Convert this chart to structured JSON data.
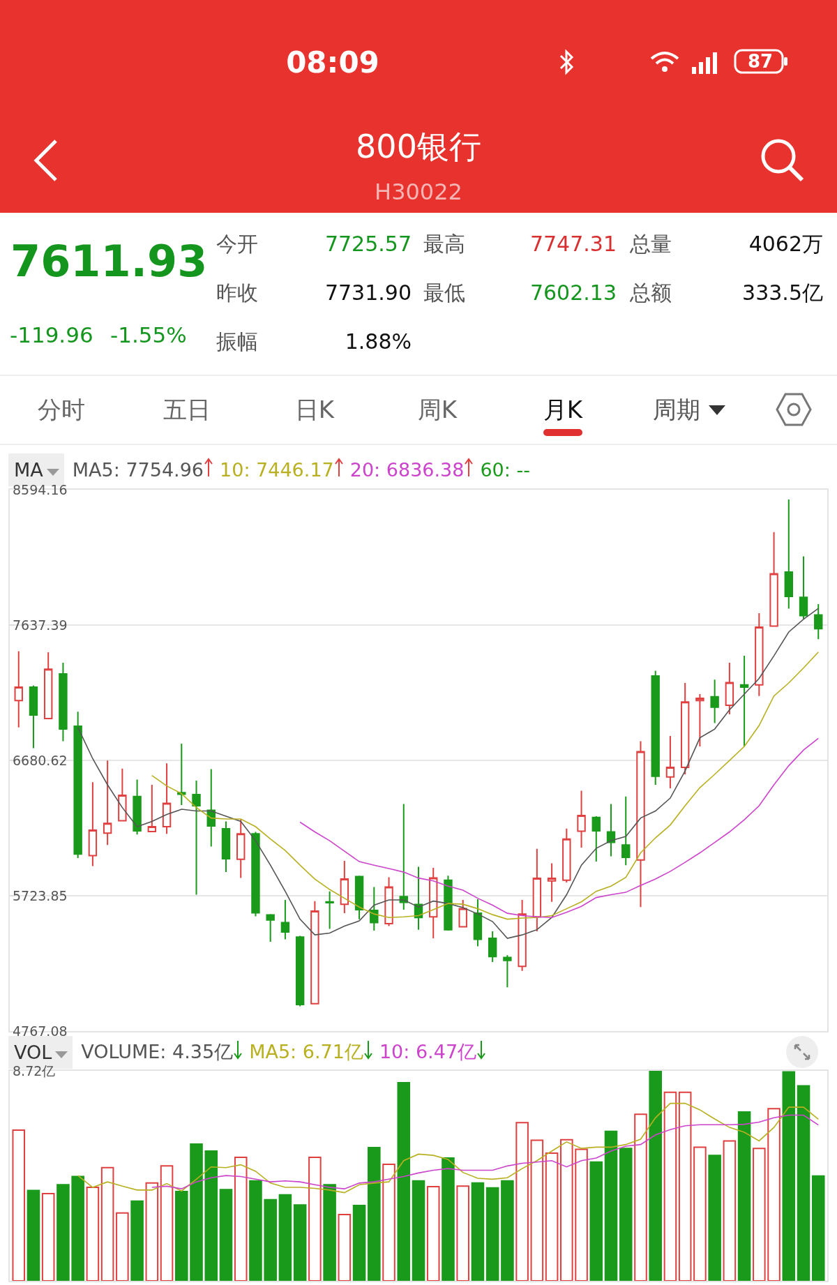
{
  "chart_data": [
    {
      "type": "other",
      "title": "800银行",
      "subtitle": "H30022",
      "annotations": [
        "08:09",
        "87",
        "7611.93",
        "-119.96",
        "-1.55%",
        "今开",
        "7725.57",
        "最高",
        "7747.31",
        "总量",
        "4062万",
        "昨收",
        "7731.90",
        "最低",
        "7602.13",
        "总额",
        "333.5亿",
        "振幅",
        "1.88%",
        "分时",
        "五日",
        "日K",
        "周K",
        "月K",
        "周期"
      ]
    },
    {
      "type": "candlestick",
      "tick_labels": "y",
      "grid": "y",
      "categories": [
        null,
        null,
        null,
        null,
        null,
        null,
        null,
        null,
        null,
        null,
        null,
        null,
        null,
        null,
        null,
        null,
        null,
        null,
        null,
        null,
        null,
        null,
        null,
        null,
        null,
        null,
        null,
        null,
        null,
        null,
        null,
        null,
        null,
        null,
        null,
        null,
        null,
        null,
        null,
        null,
        null,
        null,
        null,
        null,
        null,
        null,
        null,
        null,
        null,
        null,
        null,
        null,
        null,
        null,
        null
      ],
      "ylim": [
        4767.08,
        8594.16
      ],
      "yticks": [
        4767.08,
        5723.85,
        6680.62,
        7637.39,
        8594.16
      ],
      "annotations": [
        "MA",
        "MA5: 7754.96",
        "10: 7446.17",
        "20: 6836.38",
        "60: --"
      ],
      "ohlc": [
        [
          7104,
          7452,
          6914,
          7198
        ],
        [
          7198,
          7210,
          6767,
          7001
        ],
        [
          6976,
          7445,
          6976,
          7326
        ],
        [
          7292,
          7371,
          6816,
          6902
        ],
        [
          6922,
          7025,
          5990,
          6019
        ],
        [
          6007,
          6527,
          5933,
          6187
        ],
        [
          6167,
          6680,
          6083,
          6236
        ],
        [
          6254,
          6623,
          6249,
          6434
        ],
        [
          6426,
          6545,
          6157,
          6182
        ],
        [
          6177,
          6508,
          6175,
          6212
        ],
        [
          6212,
          6660,
          6162,
          6377
        ],
        [
          6453,
          6799,
          6365,
          6441
        ],
        [
          6439,
          6537,
          5731,
          6360
        ],
        [
          6328,
          6619,
          6071,
          6217
        ],
        [
          6197,
          6249,
          5891,
          5985
        ],
        [
          5982,
          6261,
          5849,
          6162
        ],
        [
          6162,
          6175,
          5578,
          5603
        ],
        [
          5588,
          5595,
          5398,
          5553
        ],
        [
          5534,
          5694,
          5415,
          5467
        ],
        [
          5432,
          5440,
          4942,
          4954
        ],
        [
          4961,
          5686,
          4959,
          5615
        ],
        [
          5681,
          5755,
          5489,
          5674
        ],
        [
          5664,
          5970,
          5600,
          5842
        ],
        [
          5859,
          5866,
          5558,
          5625
        ],
        [
          5620,
          5785,
          5477,
          5534
        ],
        [
          5526,
          5854,
          5509,
          5785
        ],
        [
          5718,
          6372,
          5625,
          5677
        ],
        [
          5662,
          5928,
          5484,
          5570
        ],
        [
          5575,
          5921,
          5423,
          5849
        ],
        [
          5834,
          5866,
          5477,
          5484
        ],
        [
          5504,
          5694,
          5501,
          5632
        ],
        [
          5600,
          5699,
          5366,
          5415
        ],
        [
          5423,
          5472,
          5255,
          5294
        ],
        [
          5287,
          5304,
          5077,
          5267
        ],
        [
          5225,
          5694,
          5193,
          5595
        ],
        [
          5575,
          6056,
          5472,
          5847
        ],
        [
          5829,
          5953,
          5681,
          5847
        ],
        [
          5834,
          6199,
          5817,
          6125
        ],
        [
          6180,
          6466,
          6064,
          6291
        ],
        [
          6278,
          6286,
          5965,
          6182
        ],
        [
          6175,
          6372,
          6002,
          6101
        ],
        [
          6083,
          6426,
          5940,
          5995
        ],
        [
          5977,
          6816,
          5644,
          6742
        ],
        [
          7277,
          7314,
          6508,
          6569
        ],
        [
          6564,
          6853,
          6483,
          6631
        ],
        [
          6631,
          7228,
          6582,
          7094
        ],
        [
          7104,
          7149,
          6779,
          7119
        ],
        [
          7131,
          7252,
          6944,
          7057
        ],
        [
          7070,
          7371,
          7006,
          7230
        ],
        [
          7215,
          7420,
          6779,
          7198
        ],
        [
          7215,
          7721,
          7136,
          7622
        ],
        [
          7630,
          8295,
          7630,
          8000
        ],
        [
          8012,
          8525,
          7753,
          7839
        ],
        [
          7834,
          8123,
          7679,
          7704
        ],
        [
          7709,
          7785,
          7538,
          7612
        ]
      ],
      "series": [
        {
          "type": "line",
          "color": "#555555",
          "values": [
            null,
            null,
            null,
            null,
            6914,
            6693,
            6508,
            6347,
            6212,
            6249,
            6298,
            6335,
            6323,
            6323,
            6286,
            6249,
            6113,
            5940,
            5755,
            5558,
            5447,
            5460,
            5509,
            5546,
            5657,
            5694,
            5694,
            5644,
            5686,
            5669,
            5640,
            5595,
            5541,
            5423,
            5447,
            5484,
            5570,
            5731,
            5940,
            6059,
            6113,
            6143,
            6273,
            6323,
            6414,
            6606,
            6840,
            6902,
            7038,
            7149,
            7260,
            7420,
            7588,
            7679,
            7755
          ]
        },
        {
          "type": "line",
          "color": "#b8b020",
          "values": [
            null,
            null,
            null,
            null,
            null,
            null,
            null,
            null,
            null,
            6574,
            6500,
            6446,
            6347,
            6273,
            6266,
            6266,
            6212,
            6125,
            6044,
            5940,
            5842,
            5768,
            5706,
            5644,
            5595,
            5570,
            5575,
            5583,
            5625,
            5669,
            5664,
            5632,
            5590,
            5558,
            5566,
            5570,
            5583,
            5632,
            5681,
            5755,
            5792,
            5854,
            6027,
            6133,
            6224,
            6360,
            6488,
            6582,
            6680,
            6779,
            6927,
            7136,
            7228,
            7334,
            7446
          ]
        },
        {
          "type": "line",
          "color": "#cc44cc",
          "values": [
            null,
            null,
            null,
            null,
            null,
            null,
            null,
            null,
            null,
            null,
            null,
            null,
            null,
            null,
            null,
            null,
            null,
            null,
            null,
            6244,
            6175,
            6113,
            6039,
            5965,
            5940,
            5916,
            5891,
            5849,
            5829,
            5792,
            5763,
            5706,
            5657,
            5600,
            5583,
            5575,
            5570,
            5607,
            5649,
            5711,
            5731,
            5748,
            5797,
            5842,
            5896,
            5960,
            6027,
            6101,
            6175,
            6261,
            6360,
            6508,
            6643,
            6754,
            6836
          ]
        }
      ]
    },
    {
      "type": "bar",
      "tick_labels": "y",
      "categories": [
        null,
        null,
        null,
        null,
        null,
        null,
        null,
        null,
        null,
        null,
        null,
        null,
        null,
        null,
        null,
        null,
        null,
        null,
        null,
        null,
        null,
        null,
        null,
        null,
        null,
        null,
        null,
        null,
        null,
        null,
        null,
        null,
        null,
        null,
        null,
        null,
        null,
        null,
        null,
        null,
        null,
        null,
        null,
        null,
        null,
        null,
        null,
        null,
        null,
        null,
        null,
        null,
        null,
        null,
        null
      ],
      "ylim": [
        0,
        8.72
      ],
      "yticks": [
        {
          "value": 0,
          "label": null
        },
        {
          "value": 8.72,
          "label": "8.72亿"
        }
      ],
      "annotations": [
        "VOL",
        "VOLUME: 4.35亿",
        "MA5: 6.71亿",
        "10: 6.47亿"
      ],
      "series": [
        {
          "type": "bar",
          "colors": [
            "#e04040",
            "#1a9a1a",
            "#e04040",
            "#1a9a1a",
            "#1a9a1a",
            "#e04040",
            "#e04040",
            "#e04040",
            "#1a9a1a",
            "#e04040",
            "#e04040",
            "#1a9a1a",
            "#1a9a1a",
            "#1a9a1a",
            "#1a9a1a",
            "#e04040",
            "#1a9a1a",
            "#1a9a1a",
            "#1a9a1a",
            "#1a9a1a",
            "#e04040",
            "#1a9a1a",
            "#e04040",
            "#1a9a1a",
            "#1a9a1a",
            "#e04040",
            "#1a9a1a",
            "#1a9a1a",
            "#e04040",
            "#1a9a1a",
            "#e04040",
            "#1a9a1a",
            "#1a9a1a",
            "#1a9a1a",
            "#e04040",
            "#e04040",
            "#e04040",
            "#e04040",
            "#e04040",
            "#1a9a1a",
            "#1a9a1a",
            "#1a9a1a",
            "#e04040",
            "#1a9a1a",
            "#e04040",
            "#e04040",
            "#e04040",
            "#1a9a1a",
            "#e04040",
            "#1a9a1a",
            "#e04040",
            "#e04040",
            "#1a9a1a",
            "#1a9a1a",
            "#1a9a1a"
          ],
          "values": [
            6.26,
            3.75,
            3.62,
            3.99,
            4.33,
            3.88,
            4.7,
            2.82,
            3.31,
            4.06,
            4.77,
            3.71,
            5.68,
            5.39,
            3.79,
            5.13,
            4.15,
            3.37,
            3.57,
            3.15,
            5.13,
            3.99,
            2.75,
            3.13,
            5.53,
            4.84,
            8.23,
            4.15,
            3.91,
            5.1,
            3.93,
            4.06,
            3.86,
            4.15,
            6.57,
            5.84,
            5.3,
            5.86,
            5.46,
            4.93,
            6.21,
            5.5,
            6.92,
            8.72,
            7.83,
            7.83,
            5.55,
            5.21,
            5.81,
            7.01,
            5.5,
            7.15,
            8.68,
            8.1,
            4.35
          ]
        },
        {
          "type": "line",
          "color": "#b8b020",
          "values": [
            null,
            null,
            null,
            null,
            4.37,
            3.88,
            4.11,
            3.93,
            3.77,
            3.77,
            4.04,
            3.73,
            4.22,
            4.73,
            4.7,
            4.82,
            4.55,
            4.06,
            3.88,
            3.88,
            3.84,
            3.77,
            3.66,
            3.99,
            4.06,
            4.11,
            4.99,
            5.26,
            5.21,
            5.04,
            4.5,
            4.26,
            4.22,
            4.28,
            4.66,
            4.99,
            5.39,
            5.77,
            5.5,
            5.55,
            5.55,
            5.66,
            5.88,
            6.77,
            7.37,
            7.37,
            7.1,
            6.72,
            6.37,
            6.17,
            5.81,
            6.37,
            7.21,
            7.21,
            6.71
          ]
        },
        {
          "type": "line",
          "color": "#cc44cc",
          "values": [
            null,
            null,
            null,
            null,
            null,
            null,
            null,
            null,
            null,
            3.88,
            3.93,
            3.82,
            4.11,
            4.28,
            4.37,
            4.33,
            4.22,
            4.11,
            4.15,
            4.11,
            3.99,
            3.88,
            3.82,
            4.06,
            4.11,
            4.22,
            4.33,
            4.48,
            4.59,
            4.66,
            4.59,
            4.59,
            4.59,
            4.77,
            4.88,
            4.93,
            4.99,
            4.73,
            4.99,
            5.1,
            5.39,
            5.59,
            5.66,
            6.06,
            6.28,
            6.44,
            6.48,
            6.48,
            6.48,
            6.5,
            6.59,
            6.77,
            6.88,
            6.88,
            6.47
          ]
        }
      ]
    }
  ]
}
